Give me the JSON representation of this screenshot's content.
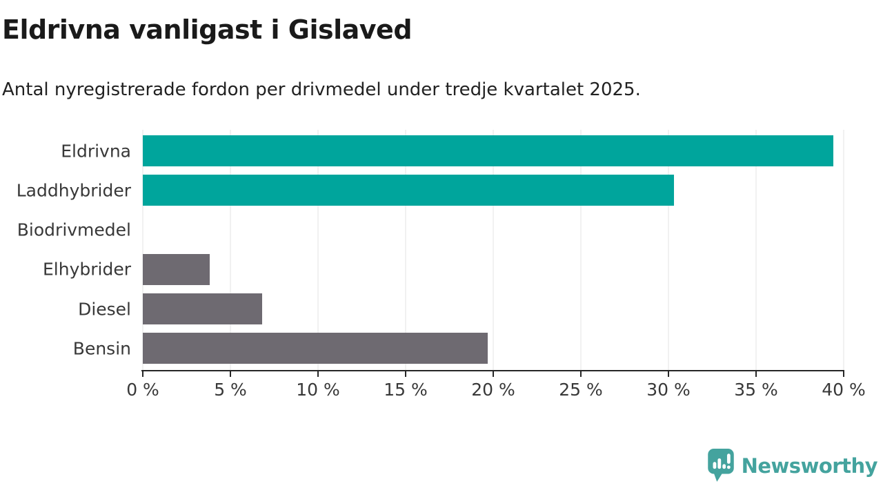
{
  "header": {
    "title": "Eldrivna vanligast i Gislaved",
    "subtitle": "Antal nyregistrerade fordon per drivmedel under tredje kvartalet 2025."
  },
  "chart_data": {
    "type": "bar",
    "orientation": "horizontal",
    "title": "Eldrivna vanligast i Gislaved",
    "subtitle": "Antal nyregistrerade fordon per drivmedel under tredje kvartalet 2025.",
    "categories": [
      "Eldrivna",
      "Laddhybrider",
      "Biodrivmedel",
      "Elhybrider",
      "Diesel",
      "Bensin"
    ],
    "values": [
      39.4,
      30.3,
      0,
      3.8,
      6.8,
      19.7
    ],
    "unit": "%",
    "xlabel": "",
    "ylabel": "",
    "xlim": [
      0,
      40
    ],
    "xticks": [
      0,
      5,
      10,
      15,
      20,
      25,
      30,
      35,
      40
    ],
    "xtick_labels": [
      "0 %",
      "5 %",
      "10 %",
      "15 %",
      "20 %",
      "25 %",
      "30 %",
      "35 %",
      "40 %"
    ],
    "grid": "vertical-gridlines-on",
    "legend": "none",
    "bar_colors": [
      "#00a59c",
      "#00a59c",
      "#6e6a71",
      "#6e6a71",
      "#6e6a71",
      "#6e6a71"
    ]
  },
  "colors": {
    "accent_teal": "#00a59c",
    "neutral_gray": "#6e6a71",
    "axis": "#262626",
    "gridline": "#e3e3e3",
    "title_text": "#1a1a1a",
    "label_text": "#383838",
    "logo_teal": "#44a39e"
  },
  "footer": {
    "brand": "Newsworthy",
    "logo_icon": "newsworthy-speech-bubble-bar-chart-icon"
  }
}
